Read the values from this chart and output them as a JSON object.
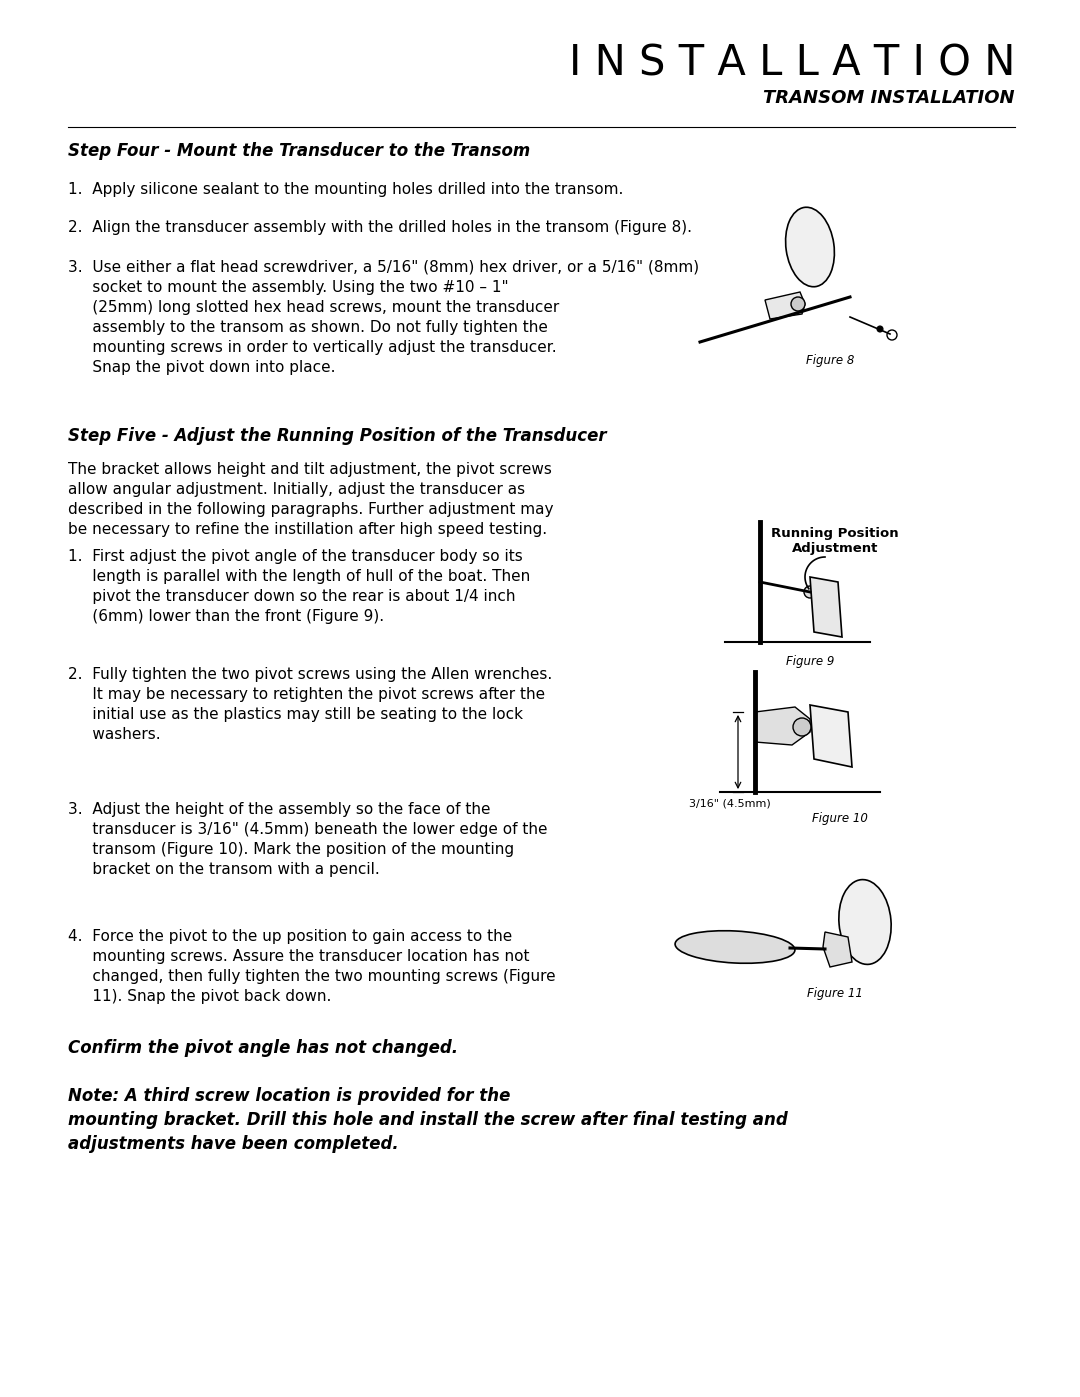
{
  "bg_color": "#ffffff",
  "title": "I N S T A L L A T I O N",
  "subtitle": "TRANSOM INSTALLATION",
  "step4_heading": "Step Four - Mount the Transducer to the Transom",
  "step5_heading": "Step Five - Adjust the Running Position of the Transducer",
  "step5_intro_lines": [
    "The bracket allows height and tilt adjustment, the pivot screws",
    "allow angular adjustment. Initially, adjust the transducer as",
    "described in the following paragraphs. Further adjustment may",
    "be necessary to refine the instillation after high speed testing."
  ],
  "step4_item1": "1.  Apply silicone sealant to the mounting holes drilled into the transom.",
  "step4_item2": "2.  Align the transducer assembly with the drilled holes in the transom (Figure 8).",
  "step4_item3_lines": [
    "3.  Use either a flat head screwdriver, a 5/16\" (8mm) hex driver, or a 5/16\" (8mm)",
    "     socket to mount the assembly. Using the two #10 – 1\"",
    "     (25mm) long slotted hex head screws, mount the transducer",
    "     assembly to the transom as shown. Do not fully tighten the",
    "     mounting screws in order to vertically adjust the transducer.",
    "     Snap the pivot down into place."
  ],
  "step5_item1_lines": [
    "1.  First adjust the pivot angle of the transducer body so its",
    "     length is parallel with the length of hull of the boat. Then",
    "     pivot the transducer down so the rear is about 1/4 inch",
    "     (6mm) lower than the front (Figure 9)."
  ],
  "step5_item2_lines": [
    "2.  Fully tighten the two pivot screws using the Allen wrenches.",
    "     It may be necessary to retighten the pivot screws after the",
    "     initial use as the plastics may still be seating to the lock",
    "     washers."
  ],
  "step5_item3_lines": [
    "3.  Adjust the height of the assembly so the face of the",
    "     transducer is 3/16\" (4.5mm) beneath the lower edge of the",
    "     transom (Figure 10). Mark the position of the mounting",
    "     bracket on the transom with a pencil."
  ],
  "step5_item4_lines": [
    "4.  Force the pivot to the up position to gain access to the",
    "     mounting screws. Assure the transducer location has not",
    "     changed, then fully tighten the two mounting screws (Figure",
    "     11). Snap the pivot back down."
  ],
  "confirm_text": "Confirm the pivot angle has not changed.",
  "note_lines": [
    "Note: A third screw location is provided for the",
    "mounting bracket. Drill this hole and install the screw after final testing and",
    "adjustments have been completed."
  ],
  "figure8_label": "Figure 8",
  "figure9_label": "Figure 9",
  "figure10_label": "Figure 10",
  "figure10_sublabel": "3/16\" (4.5mm)",
  "figure11_label": "Figure 11",
  "running_position_label": "Running Position\nAdjustment"
}
